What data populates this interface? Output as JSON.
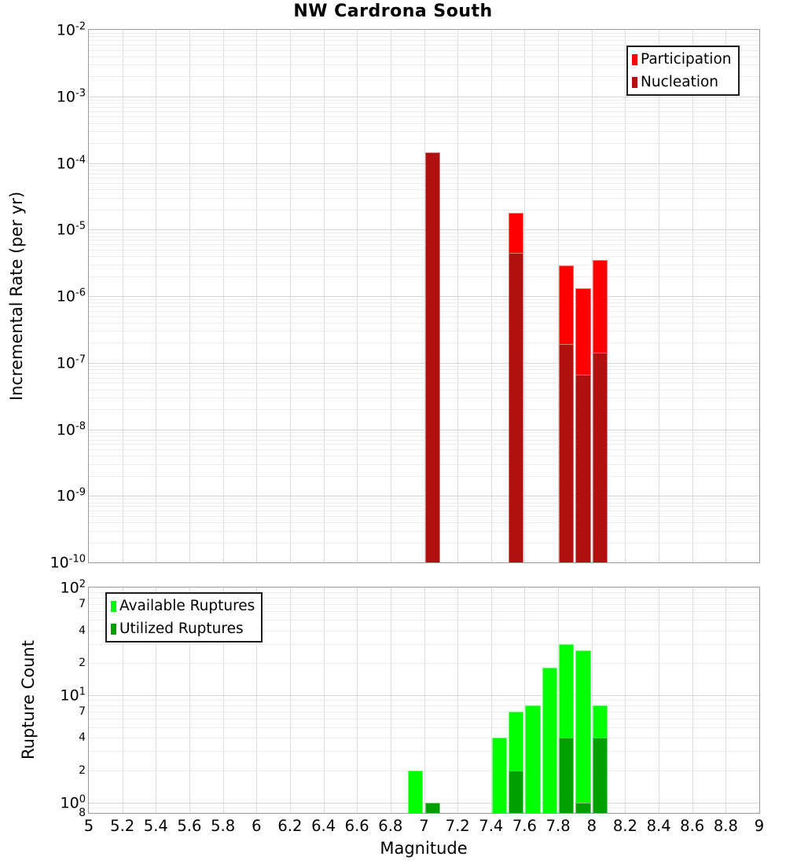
{
  "title": "NW Cardrona South",
  "chart_data": [
    {
      "type": "bar",
      "title": "NW Cardrona South",
      "ylabel": "Incremental Rate (per yr)",
      "xlabel": "",
      "yscale": "log",
      "ylim": [
        1e-10,
        0.01
      ],
      "xlim": [
        5,
        9
      ],
      "bin_width": 0.1,
      "grid": true,
      "legend_position": "upper right",
      "ytick_exponents": [
        -2,
        -3,
        -4,
        -5,
        -6,
        -7,
        -8,
        -9,
        -10
      ],
      "legend": [
        {
          "label": "Participation",
          "color": "#ff0000"
        },
        {
          "label": "Nucleation",
          "color": "#b01010"
        }
      ],
      "series": [
        {
          "name": "Participation",
          "color": "#ff0000",
          "bins": [
            [
              7.0,
              0.000145
            ],
            [
              7.5,
              1.8e-05
            ],
            [
              7.8,
              2.9e-06
            ],
            [
              7.9,
              1.3e-06
            ],
            [
              8.0,
              3.5e-06
            ]
          ]
        },
        {
          "name": "Nucleation",
          "color": "#b01010",
          "bins": [
            [
              7.0,
              0.000145
            ],
            [
              7.5,
              4.5e-06
            ],
            [
              7.8,
              1.9e-07
            ],
            [
              7.9,
              6.6e-08
            ],
            [
              8.0,
              1.4e-07
            ]
          ]
        }
      ]
    },
    {
      "type": "bar",
      "title": "",
      "ylabel": "Rupture Count",
      "xlabel": "Magnitude",
      "yscale": "log",
      "ylim": [
        0.8,
        100
      ],
      "xlim": [
        5,
        9
      ],
      "bin_width": 0.1,
      "grid": true,
      "legend_position": "upper left",
      "ytick_exponents": [
        2,
        1,
        0
      ],
      "ytick_minor_labels": [
        [
          70,
          "7"
        ],
        [
          40,
          "4"
        ],
        [
          20,
          "2"
        ],
        [
          7,
          "7"
        ],
        [
          4,
          "4"
        ],
        [
          2,
          "2"
        ],
        [
          0.8,
          "8"
        ]
      ],
      "xticks": [
        {
          "v": 5,
          "label": "5"
        },
        {
          "v": 5.2,
          "label": "5.2"
        },
        {
          "v": 5.4,
          "label": "5.4"
        },
        {
          "v": 5.6,
          "label": "5.6"
        },
        {
          "v": 5.8,
          "label": "5.8"
        },
        {
          "v": 6,
          "label": "6"
        },
        {
          "v": 6.2,
          "label": "6.2"
        },
        {
          "v": 6.4,
          "label": "6.4"
        },
        {
          "v": 6.6,
          "label": "6.6"
        },
        {
          "v": 6.8,
          "label": "6.8"
        },
        {
          "v": 7,
          "label": "7"
        },
        {
          "v": 7.2,
          "label": "7.2"
        },
        {
          "v": 7.4,
          "label": "7.4"
        },
        {
          "v": 7.6,
          "label": "7.6"
        },
        {
          "v": 7.8,
          "label": "7.8"
        },
        {
          "v": 8,
          "label": "8"
        },
        {
          "v": 8.2,
          "label": "8.2"
        },
        {
          "v": 8.4,
          "label": "8.4"
        },
        {
          "v": 8.6,
          "label": "8.6"
        },
        {
          "v": 8.8,
          "label": "8.8"
        },
        {
          "v": 9,
          "label": "9"
        }
      ],
      "legend": [
        {
          "label": "Available Ruptures",
          "color": "#00ff00"
        },
        {
          "label": "Utilized Ruptures",
          "color": "#00a000"
        }
      ],
      "series": [
        {
          "name": "Available Ruptures",
          "color": "#00ff00",
          "bins": [
            [
              6.9,
              2
            ],
            [
              7.0,
              1
            ],
            [
              7.4,
              4
            ],
            [
              7.5,
              7
            ],
            [
              7.6,
              8
            ],
            [
              7.7,
              18
            ],
            [
              7.8,
              30
            ],
            [
              7.9,
              26
            ],
            [
              8.0,
              8
            ]
          ]
        },
        {
          "name": "Utilized Ruptures",
          "color": "#00a000",
          "bins": [
            [
              7.0,
              1
            ],
            [
              7.5,
              2
            ],
            [
              7.8,
              4
            ],
            [
              7.9,
              1
            ],
            [
              8.0,
              4
            ]
          ]
        }
      ]
    }
  ]
}
